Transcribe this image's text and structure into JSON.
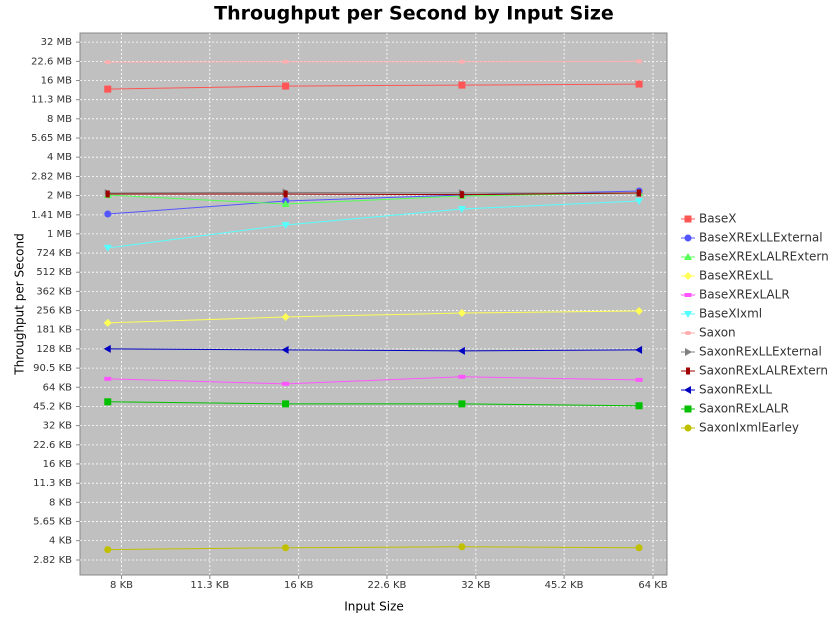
{
  "chart_data": {
    "type": "line",
    "title": "Throughput per Second by Input Size",
    "x_label": "Input Size",
    "y_label": "Throughput per Second",
    "x_scale": "log",
    "y_scale": "log",
    "grid": true,
    "legend": "right",
    "xlim": [
      6.8,
      67.6
    ],
    "ylim": [
      2.15,
      38640
    ],
    "xticks": [
      {
        "value": 8,
        "label": "8 KB"
      },
      {
        "value": 11.3,
        "label": "11.3 KB"
      },
      {
        "value": 16,
        "label": "16 KB"
      },
      {
        "value": 22.6,
        "label": "22.6 KB"
      },
      {
        "value": 32,
        "label": "32 KB"
      },
      {
        "value": 45.2,
        "label": "45.2 KB"
      },
      {
        "value": 64,
        "label": "64 KB"
      }
    ],
    "yticks": [
      {
        "value": 2.82,
        "label": "2.82 KB"
      },
      {
        "value": 4,
        "label": "4 KB"
      },
      {
        "value": 5.65,
        "label": "5.65 KB"
      },
      {
        "value": 8,
        "label": "8 KB"
      },
      {
        "value": 11.3,
        "label": "11.3 KB"
      },
      {
        "value": 16,
        "label": "16 KB"
      },
      {
        "value": 22.6,
        "label": "22.6 KB"
      },
      {
        "value": 32,
        "label": "32 KB"
      },
      {
        "value": 45.2,
        "label": "45.2 KB"
      },
      {
        "value": 64,
        "label": "64 KB"
      },
      {
        "value": 90.5,
        "label": "90.5 KB"
      },
      {
        "value": 128,
        "label": "128 KB"
      },
      {
        "value": 181,
        "label": "181 KB"
      },
      {
        "value": 256,
        "label": "256 KB"
      },
      {
        "value": 362,
        "label": "362 KB"
      },
      {
        "value": 512,
        "label": "512 KB"
      },
      {
        "value": 724,
        "label": "724 KB"
      },
      {
        "value": 1024,
        "label": "1 MB"
      },
      {
        "value": 1444,
        "label": "1.41 MB"
      },
      {
        "value": 2048,
        "label": "2 MB"
      },
      {
        "value": 2888,
        "label": "2.82 MB"
      },
      {
        "value": 4096,
        "label": "4 MB"
      },
      {
        "value": 5786,
        "label": "5.65 MB"
      },
      {
        "value": 8192,
        "label": "8 MB"
      },
      {
        "value": 11571,
        "label": "11.3 MB"
      },
      {
        "value": 16384,
        "label": "16 MB"
      },
      {
        "value": 23142,
        "label": "22.6 MB"
      },
      {
        "value": 32768,
        "label": "32 MB"
      }
    ],
    "x": [
      7.58,
      15.2,
      30.3,
      60.6
    ],
    "series": [
      {
        "name": "BaseX",
        "color": "#ff5555",
        "marker": "square",
        "values": [
          14020,
          14800,
          15070,
          15350
        ]
      },
      {
        "name": "BaseXRExLLExternal",
        "color": "#5555ff",
        "marker": "circle",
        "values": [
          1467,
          1855,
          2068,
          2222
        ]
      },
      {
        "name": "BaseXRExLALRExternal",
        "color": "#55ff55",
        "marker": "triangle-up",
        "values": [
          2068,
          1757,
          2030,
          2143
        ]
      },
      {
        "name": "BaseXRExLL",
        "color": "#ffff55",
        "marker": "diamond",
        "values": [
          205,
          228,
          245,
          254
        ]
      },
      {
        "name": "BaseXRExLALR",
        "color": "#ff55ff",
        "marker": "hrect",
        "values": [
          74.5,
          68.1,
          77.3,
          73.1
        ]
      },
      {
        "name": "BaseXIxml",
        "color": "#55ffff",
        "marker": "triangle-down",
        "values": [
          794,
          1203,
          1605,
          1855
        ]
      },
      {
        "name": "Saxon",
        "color": "#ffafaf",
        "marker": "ellipse",
        "values": [
          22830,
          23000,
          23000,
          23170
        ]
      },
      {
        "name": "SaxonRExLLExternal",
        "color": "#808080",
        "marker": "triangle-right",
        "values": [
          2143,
          2170,
          2143,
          2143
        ]
      },
      {
        "name": "SaxonRExLALRExternal",
        "color": "#a00000",
        "marker": "vrect",
        "values": [
          2105,
          2105,
          2080,
          2143
        ]
      },
      {
        "name": "SaxonRExLL",
        "color": "#0000c0",
        "marker": "triangle-left",
        "values": [
          128,
          125.8,
          123.6,
          125.8
        ]
      },
      {
        "name": "SaxonRExLALR",
        "color": "#00c000",
        "marker": "square",
        "values": [
          49.2,
          47.4,
          47.4,
          45.8
        ]
      },
      {
        "name": "SaxonIxmlEarley",
        "color": "#c0c000",
        "marker": "circle",
        "values": [
          3.4,
          3.52,
          3.58,
          3.52
        ]
      }
    ]
  }
}
